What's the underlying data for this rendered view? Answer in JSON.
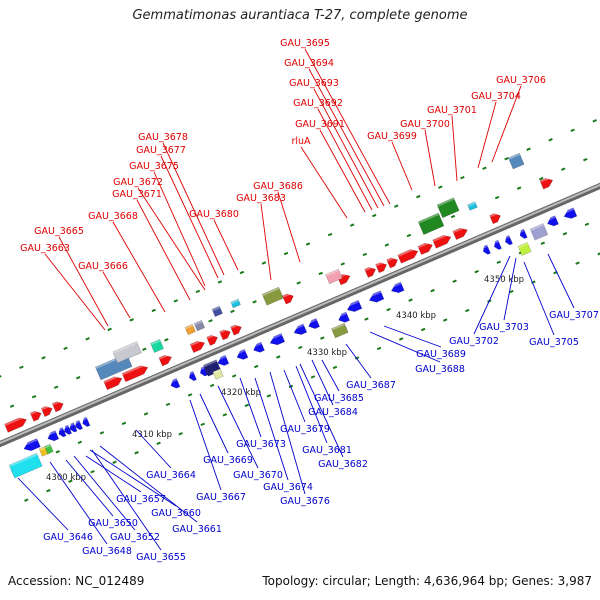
{
  "title": "Gemmatimonas aurantiaca T-27, complete genome",
  "footer": {
    "accession": "Accession: NC_012489",
    "summary": "Topology: circular; Length: 4,636,964 bp; Genes: 3,987"
  },
  "colors": {
    "forward_label": "#dd0000",
    "reverse_label": "#0000cc",
    "forward_gene": "#ee1111",
    "reverse_gene": "#1111ee",
    "backbone": "#888888",
    "tick": "#1a7a1a"
  },
  "scale_labels": [
    "4300 kbp",
    "4310 kbp",
    "4320 kbp",
    "4330 kbp",
    "4340 kbp",
    "4350 kbp"
  ],
  "forward_genes": [
    "GAU_3663",
    "GAU_3665",
    "GAU_3666",
    "GAU_3668",
    "GAU_3671",
    "GAU_3672",
    "GAU_3675",
    "GAU_3677",
    "GAU_3678",
    "GAU_3680",
    "GAU_3683",
    "GAU_3686",
    "rluA",
    "GAU_3691",
    "GAU_3692",
    "GAU_3693",
    "GAU_3694",
    "GAU_3695",
    "GAU_3699",
    "GAU_3700",
    "GAU_3701",
    "GAU_3704",
    "GAU_3706"
  ],
  "reverse_genes": [
    "GAU_3646",
    "GAU_3648",
    "GAU_3650",
    "GAU_3652",
    "GAU_3655",
    "GAU_3657",
    "GAU_3660",
    "GAU_3661",
    "GAU_3664",
    "GAU_3667",
    "GAU_3669",
    "GAU_3670",
    "GAU_3673",
    "GAU_3674",
    "GAU_3676",
    "GAU_3679",
    "GAU_3681",
    "GAU_3682",
    "GAU_3684",
    "GAU_3685",
    "GAU_3687",
    "GAU_3688",
    "GAU_3689",
    "GAU_3702",
    "GAU_3703",
    "GAU_3705",
    "GAU_3707"
  ]
}
